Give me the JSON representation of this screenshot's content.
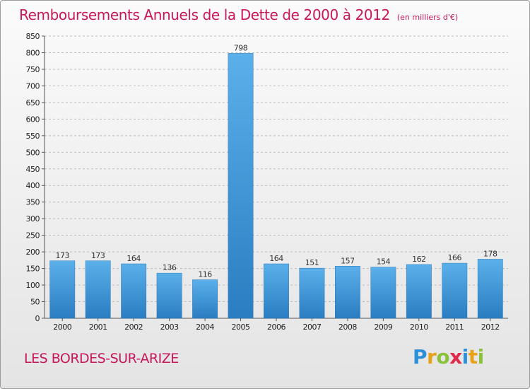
{
  "title": "Remboursements Annuels de la Dette de 2000 à 2012",
  "subtitle": "(en milliers d'€)",
  "commune": "LES BORDES-SUR-ARIZE",
  "logo": {
    "letters": [
      "P",
      "r",
      "o",
      "x",
      "i",
      "t",
      "i"
    ],
    "colors": [
      "#2b8fd9",
      "#e8a21a",
      "#8cc23b",
      "#e02a4b",
      "#2b8fd9",
      "#e8a21a",
      "#8cc23b"
    ]
  },
  "colors": {
    "accent": "#c8175a",
    "bar_light": "#5bb0ea",
    "bar_dark": "#2a7dc1",
    "grid": "#bdbdbd"
  },
  "chart_data": {
    "type": "bar",
    "categories": [
      "2000",
      "2001",
      "2002",
      "2003",
      "2004",
      "2005",
      "2006",
      "2007",
      "2008",
      "2009",
      "2010",
      "2011",
      "2012"
    ],
    "values": [
      173,
      173,
      164,
      136,
      116,
      798,
      164,
      151,
      157,
      154,
      162,
      166,
      178
    ],
    "data_labels": [
      "173",
      "173",
      "164",
      "136",
      "116",
      "798",
      "164",
      "151",
      "157",
      "154",
      "162",
      "166",
      "178"
    ],
    "ylim": [
      0,
      850
    ],
    "yticks": [
      0,
      50,
      100,
      150,
      200,
      250,
      300,
      350,
      400,
      450,
      500,
      550,
      600,
      650,
      700,
      750,
      800,
      850
    ],
    "grid": "horizontal dashed",
    "xlabel": "",
    "ylabel": ""
  }
}
